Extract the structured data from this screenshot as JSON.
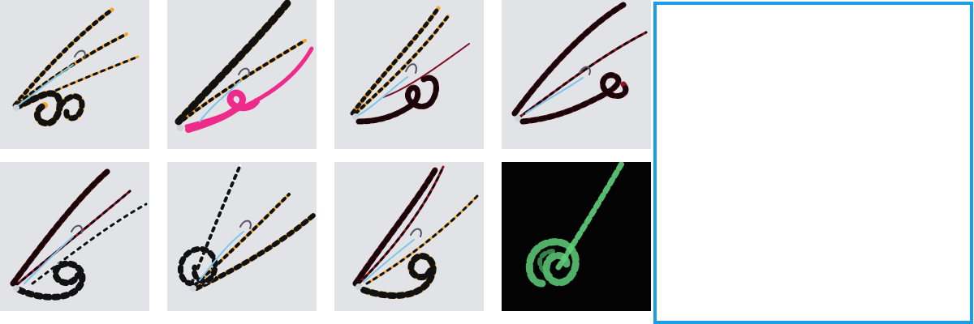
{
  "gallery": {
    "selected_index": 7,
    "selection_color": "#1a9ee6",
    "items": [
      {
        "variant": "orange-black-stripe skirt, orange-black curly tail",
        "tail_colors": [
          "#f4a62a",
          "#111111"
        ]
      },
      {
        "variant": "orange-black-stripe skirt, pink curly tail",
        "tail_colors": [
          "#ee2a8a",
          "#ee2a8a"
        ]
      },
      {
        "variant": "orange-black-stripe skirt, red-black curly tail",
        "tail_colors": [
          "#7d1022",
          "#1a0508"
        ]
      },
      {
        "variant": "red-black-stripe skirt, red-black curly tail",
        "tail_colors": [
          "#8b1428",
          "#1a0508"
        ]
      },
      {
        "variant": "red-black-stripe skirt, white-black curly tail",
        "tail_colors": [
          "#f2f2f2",
          "#111111"
        ]
      },
      {
        "variant": "white-black / orange-black mix, white-black curly tail",
        "tail_colors": [
          "#f2f2f2",
          "#111111"
        ]
      },
      {
        "variant": "red-black-stripe skirt, orange-black curly tail",
        "tail_colors": [
          "#f4a62a",
          "#111111"
        ]
      },
      {
        "variant": "glow-in-the-dark green skirt",
        "tail_colors": [
          "#5fcf7a",
          "#0a2a12"
        ]
      }
    ]
  }
}
